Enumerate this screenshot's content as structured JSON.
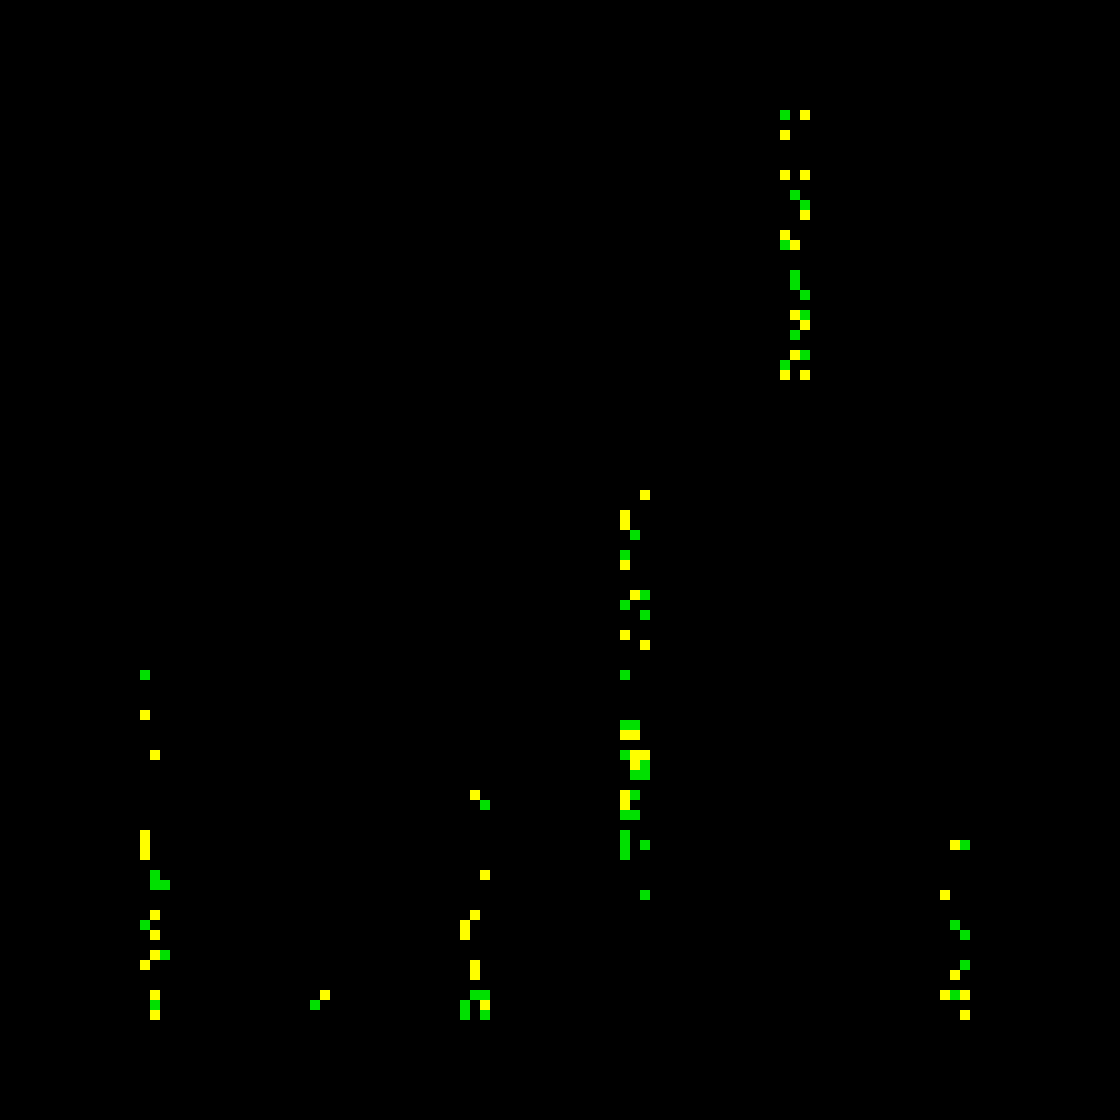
{
  "board": {
    "background": "#000000",
    "colors": {
      "y": "#ffff00",
      "g": "#00e000"
    },
    "columns": 112,
    "rows": 112,
    "cells": [
      [
        78,
        11,
        "g"
      ],
      [
        80,
        11,
        "y"
      ],
      [
        78,
        13,
        "y"
      ],
      [
        78,
        17,
        "y"
      ],
      [
        80,
        17,
        "y"
      ],
      [
        79,
        19,
        "g"
      ],
      [
        80,
        20,
        "g"
      ],
      [
        80,
        21,
        "y"
      ],
      [
        78,
        23,
        "y"
      ],
      [
        78,
        24,
        "g"
      ],
      [
        79,
        24,
        "y"
      ],
      [
        79,
        27,
        "g"
      ],
      [
        79,
        28,
        "g"
      ],
      [
        80,
        29,
        "g"
      ],
      [
        79,
        31,
        "y"
      ],
      [
        80,
        31,
        "g"
      ],
      [
        80,
        32,
        "y"
      ],
      [
        79,
        33,
        "g"
      ],
      [
        79,
        35,
        "y"
      ],
      [
        80,
        35,
        "g"
      ],
      [
        78,
        36,
        "g"
      ],
      [
        78,
        37,
        "y"
      ],
      [
        80,
        37,
        "y"
      ],
      [
        64,
        49,
        "y"
      ],
      [
        62,
        51,
        "y"
      ],
      [
        62,
        52,
        "y"
      ],
      [
        63,
        53,
        "g"
      ],
      [
        62,
        55,
        "g"
      ],
      [
        62,
        56,
        "y"
      ],
      [
        63,
        59,
        "y"
      ],
      [
        64,
        59,
        "g"
      ],
      [
        62,
        60,
        "g"
      ],
      [
        64,
        61,
        "g"
      ],
      [
        62,
        63,
        "y"
      ],
      [
        64,
        64,
        "y"
      ],
      [
        62,
        67,
        "g"
      ],
      [
        62,
        72,
        "g"
      ],
      [
        63,
        72,
        "g"
      ],
      [
        62,
        73,
        "y"
      ],
      [
        63,
        73,
        "y"
      ],
      [
        62,
        75,
        "g"
      ],
      [
        63,
        75,
        "y"
      ],
      [
        64,
        75,
        "y"
      ],
      [
        63,
        76,
        "y"
      ],
      [
        64,
        76,
        "g"
      ],
      [
        63,
        77,
        "g"
      ],
      [
        64,
        77,
        "g"
      ],
      [
        62,
        79,
        "y"
      ],
      [
        63,
        79,
        "g"
      ],
      [
        62,
        80,
        "y"
      ],
      [
        62,
        81,
        "g"
      ],
      [
        63,
        81,
        "g"
      ],
      [
        62,
        83,
        "g"
      ],
      [
        62,
        84,
        "g"
      ],
      [
        64,
        84,
        "g"
      ],
      [
        62,
        85,
        "g"
      ],
      [
        64,
        89,
        "g"
      ],
      [
        14,
        67,
        "g"
      ],
      [
        14,
        71,
        "y"
      ],
      [
        15,
        75,
        "y"
      ],
      [
        14,
        83,
        "y"
      ],
      [
        14,
        84,
        "y"
      ],
      [
        14,
        85,
        "y"
      ],
      [
        15,
        87,
        "g"
      ],
      [
        15,
        88,
        "g"
      ],
      [
        16,
        88,
        "g"
      ],
      [
        15,
        91,
        "y"
      ],
      [
        14,
        92,
        "g"
      ],
      [
        15,
        93,
        "y"
      ],
      [
        15,
        95,
        "y"
      ],
      [
        16,
        95,
        "g"
      ],
      [
        14,
        96,
        "y"
      ],
      [
        15,
        99,
        "y"
      ],
      [
        15,
        100,
        "g"
      ],
      [
        15,
        101,
        "y"
      ],
      [
        32,
        99,
        "y"
      ],
      [
        31,
        100,
        "g"
      ],
      [
        47,
        79,
        "y"
      ],
      [
        48,
        80,
        "g"
      ],
      [
        48,
        87,
        "y"
      ],
      [
        47,
        91,
        "y"
      ],
      [
        46,
        92,
        "y"
      ],
      [
        46,
        93,
        "y"
      ],
      [
        47,
        96,
        "y"
      ],
      [
        47,
        97,
        "y"
      ],
      [
        47,
        99,
        "g"
      ],
      [
        48,
        99,
        "g"
      ],
      [
        46,
        100,
        "g"
      ],
      [
        48,
        100,
        "y"
      ],
      [
        46,
        101,
        "g"
      ],
      [
        48,
        101,
        "g"
      ],
      [
        95,
        84,
        "y"
      ],
      [
        96,
        84,
        "g"
      ],
      [
        94,
        89,
        "y"
      ],
      [
        95,
        92,
        "g"
      ],
      [
        96,
        93,
        "g"
      ],
      [
        96,
        96,
        "g"
      ],
      [
        95,
        97,
        "y"
      ],
      [
        94,
        99,
        "y"
      ],
      [
        95,
        99,
        "g"
      ],
      [
        96,
        99,
        "y"
      ],
      [
        96,
        101,
        "y"
      ]
    ]
  }
}
